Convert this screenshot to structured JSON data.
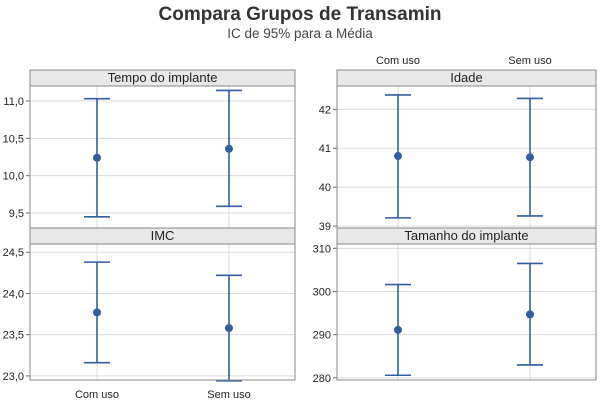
{
  "chart_data": {
    "type": "interval",
    "title": "Compara Grupos de Transamin",
    "subtitle": "IC de 95% para a Média",
    "categories": [
      "Com uso",
      "Sem uso"
    ],
    "colors": {
      "interval": "#2f5fa0",
      "strip_bg": "#e8e8e8",
      "frame": "#888888",
      "grid": "#dcdcdc"
    },
    "grid": true,
    "panels": [
      {
        "name": "Tempo do implante",
        "ylim": [
          9.3,
          11.2
        ],
        "yticks": [
          9.5,
          10.0,
          10.5,
          11.0
        ],
        "yticklabels": [
          "9,5",
          "10,0",
          "10,5",
          "11,0"
        ],
        "intervals": [
          {
            "category": "Com uso",
            "lower": 9.45,
            "mean": 10.24,
            "upper": 11.03
          },
          {
            "category": "Sem uso",
            "lower": 9.59,
            "mean": 10.36,
            "upper": 11.14
          }
        ]
      },
      {
        "name": "Idade",
        "ylim": [
          38.95,
          42.6
        ],
        "yticks": [
          39,
          40,
          41,
          42
        ],
        "yticklabels": [
          "39",
          "40",
          "41",
          "42"
        ],
        "intervals": [
          {
            "category": "Com uso",
            "lower": 39.21,
            "mean": 40.8,
            "upper": 42.37
          },
          {
            "category": "Sem uso",
            "lower": 39.26,
            "mean": 40.77,
            "upper": 42.28
          }
        ]
      },
      {
        "name": "IMC",
        "ylim": [
          22.95,
          24.6
        ],
        "yticks": [
          23.0,
          23.5,
          24.0,
          24.5
        ],
        "yticklabels": [
          "23,0",
          "23,5",
          "24,0",
          "24,5"
        ],
        "intervals": [
          {
            "category": "Com uso",
            "lower": 23.16,
            "mean": 23.77,
            "upper": 24.38
          },
          {
            "category": "Sem uso",
            "lower": 22.94,
            "mean": 23.58,
            "upper": 24.22
          }
        ]
      },
      {
        "name": "Tamanho do implante",
        "ylim": [
          279.5,
          311
        ],
        "yticks": [
          280,
          290,
          300,
          310
        ],
        "yticklabels": [
          "280",
          "290",
          "300",
          "310"
        ],
        "intervals": [
          {
            "category": "Com uso",
            "lower": 280.6,
            "mean": 291.1,
            "upper": 301.6
          },
          {
            "category": "Sem uso",
            "lower": 283.0,
            "mean": 294.7,
            "upper": 306.5
          }
        ]
      }
    ]
  }
}
